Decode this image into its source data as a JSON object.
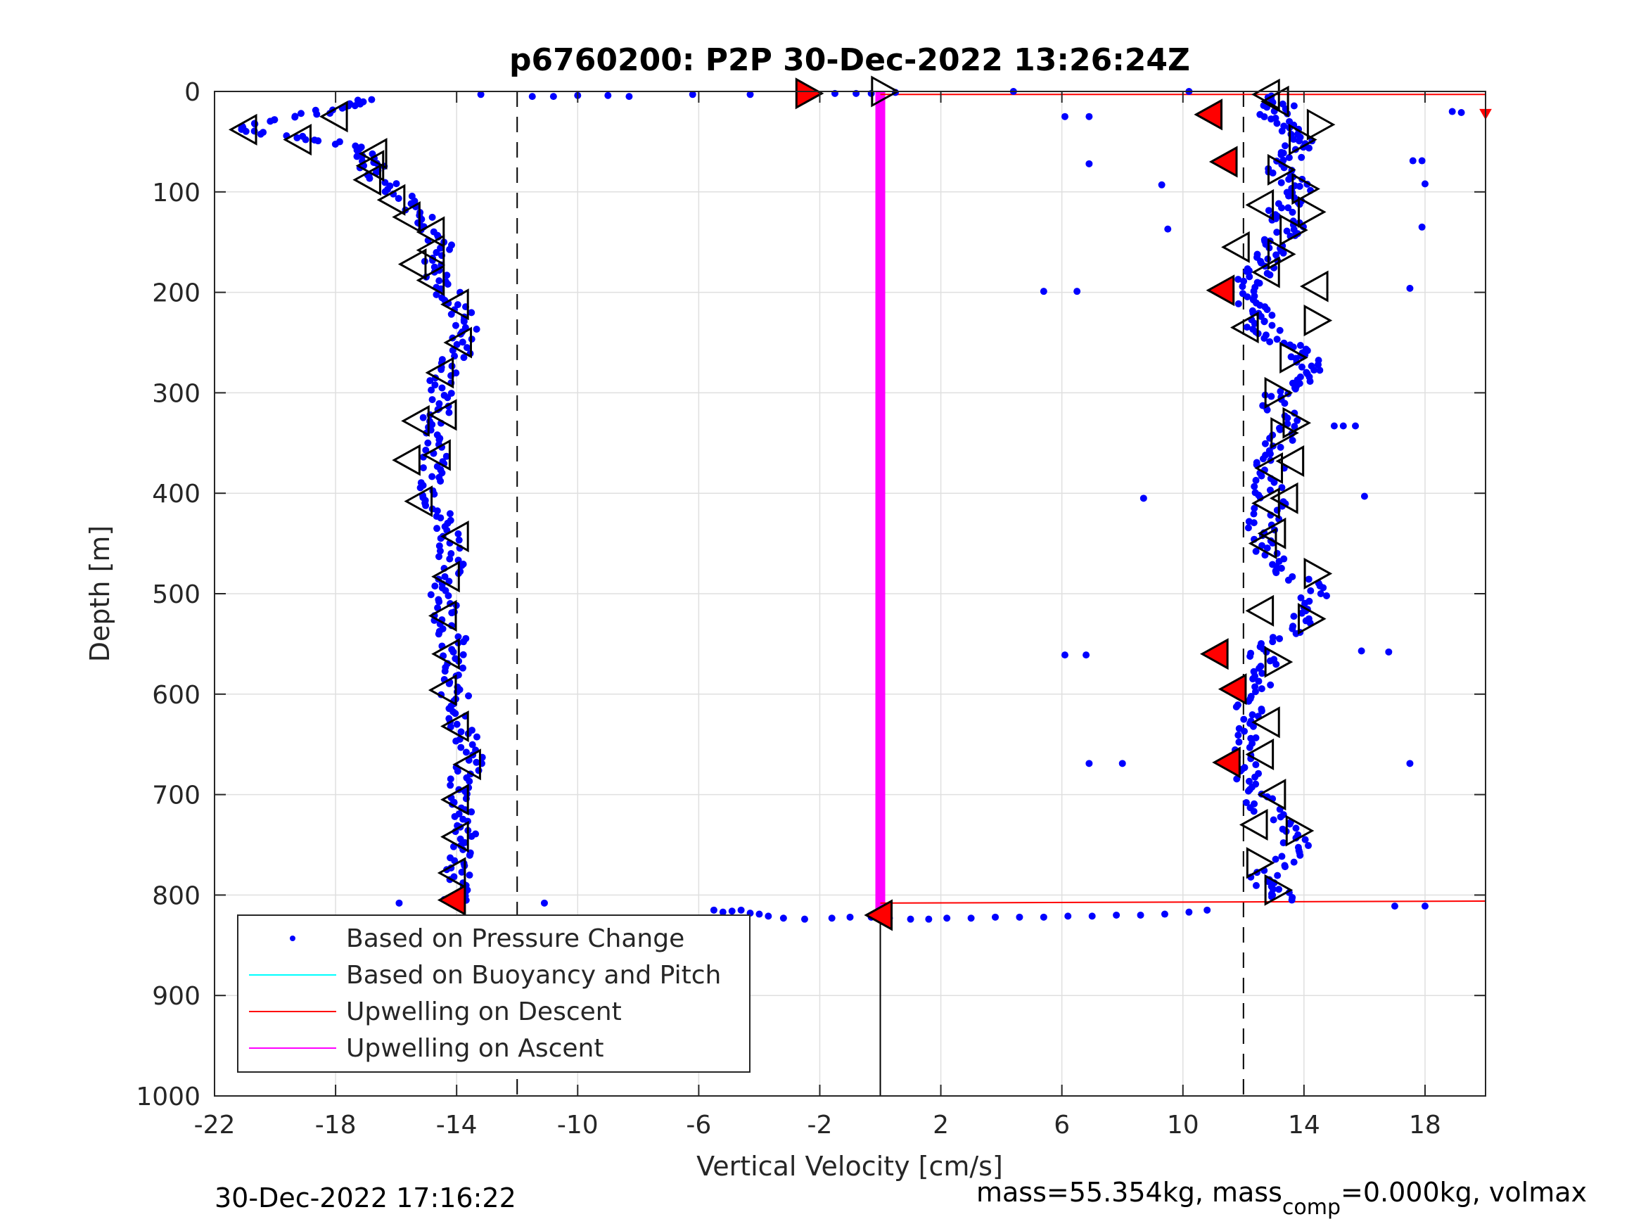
{
  "figure": {
    "title": "p6760200: P2P 30-Dec-2022 13:26:24Z",
    "footer_left": "30-Dec-2022 17:16:22",
    "footer_right_prefix": "mass=55.354kg, mass",
    "footer_right_sub": "comp",
    "footer_right_suffix": "=0.000kg, volmax"
  },
  "chart_data": {
    "type": "scatter",
    "xlabel": "Vertical Velocity [cm/s]",
    "ylabel": "Depth [m]",
    "xlim": [
      -22,
      20
    ],
    "ylim": [
      0,
      1000
    ],
    "y_reversed": true,
    "grid": true,
    "xticks": [
      -22,
      -18,
      -14,
      -10,
      -6,
      -2,
      2,
      6,
      10,
      14,
      18
    ],
    "xtick_labels": [
      "-22",
      "-18",
      "-14",
      "-10",
      "-6",
      "-2",
      "2",
      "6",
      "10",
      "14",
      "18"
    ],
    "yticks": [
      0,
      100,
      200,
      300,
      400,
      500,
      600,
      700,
      800,
      900,
      1000
    ],
    "ytick_labels": [
      "0",
      "100",
      "200",
      "300",
      "400",
      "500",
      "600",
      "700",
      "800",
      "900",
      "1000"
    ],
    "legend_position": "bottom-left",
    "legend": [
      {
        "label": "Based on Pressure Change",
        "color": "#0000ff",
        "marker": "dot"
      },
      {
        "label": "Based on Buoyancy and Pitch",
        "color": "#00ffff",
        "marker": "line"
      },
      {
        "label": "Upwelling on Descent",
        "color": "#ff0000",
        "marker": "line"
      },
      {
        "label": "Upwelling on Ascent",
        "color": "#ff00ff",
        "marker": "line"
      }
    ],
    "colors": {
      "pressure": "#0000ff",
      "descent_upwelling": "#ff0000",
      "ascent_upwelling": "#ff00ff",
      "reference_lines": "#000000"
    },
    "reference_lines": {
      "dashed_x": [
        -12,
        12
      ],
      "solid_x_segment": {
        "x": 0,
        "y_from": 820,
        "y_to": 1000
      }
    },
    "upwelling_on_descent": [
      {
        "x": [
          0,
          20
        ],
        "y": [
          3,
          3
        ]
      },
      {
        "x": [
          0,
          20
        ],
        "y": [
          808,
          806
        ]
      }
    ],
    "upwelling_on_ascent": {
      "x": [
        0,
        0
      ],
      "y": [
        0,
        820
      ]
    },
    "descent_profile": [
      {
        "depth": 8,
        "v": -16.8
      },
      {
        "depth": 15,
        "v": -17.5
      },
      {
        "depth": 22,
        "v": -18.8
      },
      {
        "depth": 30,
        "v": -20.2
      },
      {
        "depth": 38,
        "v": -21.2
      },
      {
        "depth": 45,
        "v": -19.5
      },
      {
        "depth": 52,
        "v": -17.8
      },
      {
        "depth": 60,
        "v": -17.0
      },
      {
        "depth": 70,
        "v": -16.7
      },
      {
        "depth": 80,
        "v": -16.8
      },
      {
        "depth": 95,
        "v": -16.2
      },
      {
        "depth": 110,
        "v": -15.5
      },
      {
        "depth": 125,
        "v": -15.0
      },
      {
        "depth": 140,
        "v": -14.7
      },
      {
        "depth": 155,
        "v": -14.5
      },
      {
        "depth": 170,
        "v": -15.0
      },
      {
        "depth": 185,
        "v": -14.6
      },
      {
        "depth": 200,
        "v": -14.3
      },
      {
        "depth": 215,
        "v": -14.0
      },
      {
        "depth": 230,
        "v": -13.6
      },
      {
        "depth": 245,
        "v": -13.8
      },
      {
        "depth": 260,
        "v": -13.9
      },
      {
        "depth": 275,
        "v": -14.3
      },
      {
        "depth": 290,
        "v": -14.6
      },
      {
        "depth": 305,
        "v": -14.4
      },
      {
        "depth": 320,
        "v": -14.6
      },
      {
        "depth": 335,
        "v": -14.9
      },
      {
        "depth": 350,
        "v": -14.5
      },
      {
        "depth": 365,
        "v": -14.8
      },
      {
        "depth": 380,
        "v": -14.6
      },
      {
        "depth": 395,
        "v": -14.8
      },
      {
        "depth": 410,
        "v": -14.7
      },
      {
        "depth": 425,
        "v": -14.5
      },
      {
        "depth": 440,
        "v": -14.2
      },
      {
        "depth": 455,
        "v": -14.1
      },
      {
        "depth": 470,
        "v": -14.2
      },
      {
        "depth": 485,
        "v": -14.3
      },
      {
        "depth": 500,
        "v": -14.4
      },
      {
        "depth": 515,
        "v": -14.3
      },
      {
        "depth": 530,
        "v": -14.3
      },
      {
        "depth": 545,
        "v": -14.1
      },
      {
        "depth": 560,
        "v": -14.2
      },
      {
        "depth": 575,
        "v": -14.2
      },
      {
        "depth": 590,
        "v": -14.3
      },
      {
        "depth": 605,
        "v": -14.0
      },
      {
        "depth": 620,
        "v": -13.9
      },
      {
        "depth": 635,
        "v": -13.8
      },
      {
        "depth": 650,
        "v": -13.6
      },
      {
        "depth": 665,
        "v": -13.5
      },
      {
        "depth": 680,
        "v": -13.8
      },
      {
        "depth": 695,
        "v": -13.9
      },
      {
        "depth": 710,
        "v": -13.8
      },
      {
        "depth": 725,
        "v": -13.7
      },
      {
        "depth": 740,
        "v": -13.8
      },
      {
        "depth": 755,
        "v": -13.8
      },
      {
        "depth": 770,
        "v": -13.9
      },
      {
        "depth": 785,
        "v": -13.9
      },
      {
        "depth": 800,
        "v": -14.0
      },
      {
        "depth": 808,
        "v": -14.1
      }
    ],
    "ascent_profile": [
      {
        "depth": 5,
        "v": 12.8
      },
      {
        "depth": 15,
        "v": 13.2
      },
      {
        "depth": 25,
        "v": 12.9
      },
      {
        "depth": 35,
        "v": 13.6
      },
      {
        "depth": 45,
        "v": 13.9
      },
      {
        "depth": 55,
        "v": 13.8
      },
      {
        "depth": 65,
        "v": 13.5
      },
      {
        "depth": 75,
        "v": 13.2
      },
      {
        "depth": 85,
        "v": 13.4
      },
      {
        "depth": 95,
        "v": 13.9
      },
      {
        "depth": 105,
        "v": 13.7
      },
      {
        "depth": 115,
        "v": 13.3
      },
      {
        "depth": 125,
        "v": 13.4
      },
      {
        "depth": 135,
        "v": 13.5
      },
      {
        "depth": 145,
        "v": 13.2
      },
      {
        "depth": 155,
        "v": 13.0
      },
      {
        "depth": 165,
        "v": 12.8
      },
      {
        "depth": 175,
        "v": 12.6
      },
      {
        "depth": 185,
        "v": 12.4
      },
      {
        "depth": 195,
        "v": 11.9
      },
      {
        "depth": 205,
        "v": 12.0
      },
      {
        "depth": 215,
        "v": 12.3
      },
      {
        "depth": 225,
        "v": 12.6
      },
      {
        "depth": 235,
        "v": 12.6
      },
      {
        "depth": 245,
        "v": 13.0
      },
      {
        "depth": 255,
        "v": 13.5
      },
      {
        "depth": 265,
        "v": 14.0
      },
      {
        "depth": 275,
        "v": 14.3
      },
      {
        "depth": 285,
        "v": 13.9
      },
      {
        "depth": 295,
        "v": 13.4
      },
      {
        "depth": 305,
        "v": 13.0
      },
      {
        "depth": 320,
        "v": 13.2
      },
      {
        "depth": 335,
        "v": 13.5
      },
      {
        "depth": 350,
        "v": 13.2
      },
      {
        "depth": 365,
        "v": 13.0
      },
      {
        "depth": 380,
        "v": 12.8
      },
      {
        "depth": 395,
        "v": 12.8
      },
      {
        "depth": 410,
        "v": 12.9
      },
      {
        "depth": 425,
        "v": 12.7
      },
      {
        "depth": 440,
        "v": 12.6
      },
      {
        "depth": 455,
        "v": 12.8
      },
      {
        "depth": 470,
        "v": 13.1
      },
      {
        "depth": 485,
        "v": 13.8
      },
      {
        "depth": 500,
        "v": 14.4
      },
      {
        "depth": 515,
        "v": 14.2
      },
      {
        "depth": 530,
        "v": 13.9
      },
      {
        "depth": 545,
        "v": 13.2
      },
      {
        "depth": 560,
        "v": 12.6
      },
      {
        "depth": 575,
        "v": 12.6
      },
      {
        "depth": 590,
        "v": 12.4
      },
      {
        "depth": 605,
        "v": 12.2
      },
      {
        "depth": 620,
        "v": 12.1
      },
      {
        "depth": 635,
        "v": 12.2
      },
      {
        "depth": 650,
        "v": 12.2
      },
      {
        "depth": 665,
        "v": 12.1
      },
      {
        "depth": 680,
        "v": 12.0
      },
      {
        "depth": 695,
        "v": 12.4
      },
      {
        "depth": 710,
        "v": 12.6
      },
      {
        "depth": 725,
        "v": 13.0
      },
      {
        "depth": 740,
        "v": 13.6
      },
      {
        "depth": 755,
        "v": 13.8
      },
      {
        "depth": 770,
        "v": 13.2
      },
      {
        "depth": 785,
        "v": 12.6
      },
      {
        "depth": 795,
        "v": 13.0
      },
      {
        "depth": 805,
        "v": 13.6
      }
    ],
    "surface_transition": {
      "x": [
        -13.2,
        -11.5,
        -10.8,
        -10.0,
        -9.0,
        -8.3,
        -6.2,
        -4.3,
        -2.5,
        -1.5,
        -0.8,
        -0.3,
        0.5
      ],
      "y": [
        3,
        5,
        5,
        4,
        4,
        5,
        3,
        3,
        2,
        2,
        2,
        2,
        1
      ]
    },
    "bottom_transition": {
      "x": [
        -5.5,
        -5.2,
        -4.9,
        -4.6,
        -4.3,
        -4.0,
        -3.7,
        -3.2,
        -2.5,
        -1.6,
        -1.0,
        -0.3,
        0.3,
        1.0,
        1.6,
        2.2,
        3.0,
        3.8,
        4.6,
        5.4,
        6.2,
        7.0,
        7.8,
        8.6,
        9.4,
        10.2,
        10.8
      ],
      "y": [
        815,
        817,
        816,
        815,
        818,
        819,
        821,
        823,
        824,
        823,
        822,
        822,
        823,
        824,
        824,
        823,
        823,
        822,
        822,
        822,
        821,
        821,
        820,
        820,
        819,
        817,
        815
      ]
    },
    "outliers": {
      "x": [
        4.4,
        10.2,
        6.1,
        6.9,
        6.9,
        9.3,
        9.5,
        5.4,
        6.5,
        8.7,
        6.1,
        6.8,
        6.9,
        8.0,
        15.0,
        15.3,
        15.7,
        16.0,
        15.9,
        16.8,
        17.5,
        17.5,
        17.6,
        17.9,
        18.0,
        17.9,
        18.9,
        19.2,
        17.0,
        18.0,
        -15.9,
        -11.1
      ],
      "y": [
        0,
        0,
        25,
        25,
        72,
        93,
        137,
        199,
        199,
        405,
        561,
        561,
        669,
        669,
        333,
        333,
        333,
        403,
        557,
        558,
        196,
        669,
        69,
        69,
        92,
        135,
        20,
        21,
        811,
        811,
        808,
        808
      ]
    },
    "markers": [
      {
        "depth": 38,
        "v": -21.0,
        "dir": "left",
        "fill": "none"
      },
      {
        "depth": 25,
        "v": -18.0,
        "dir": "left",
        "fill": "none"
      },
      {
        "depth": 48,
        "v": -19.2,
        "dir": "left",
        "fill": "none"
      },
      {
        "depth": 62,
        "v": -16.7,
        "dir": "left",
        "fill": "none"
      },
      {
        "depth": 74,
        "v": -16.8,
        "dir": "left",
        "fill": "none"
      },
      {
        "depth": 88,
        "v": -16.9,
        "dir": "left",
        "fill": "none"
      },
      {
        "depth": 108,
        "v": -16.1,
        "dir": "left",
        "fill": "none"
      },
      {
        "depth": 125,
        "v": -15.6,
        "dir": "left",
        "fill": "none"
      },
      {
        "depth": 140,
        "v": -14.8,
        "dir": "left",
        "fill": "none"
      },
      {
        "depth": 158,
        "v": -14.8,
        "dir": "left",
        "fill": "none"
      },
      {
        "depth": 172,
        "v": -15.4,
        "dir": "left",
        "fill": "none"
      },
      {
        "depth": 188,
        "v": -14.8,
        "dir": "left",
        "fill": "none"
      },
      {
        "depth": 212,
        "v": -14.0,
        "dir": "left",
        "fill": "none"
      },
      {
        "depth": 250,
        "v": -13.9,
        "dir": "left",
        "fill": "none"
      },
      {
        "depth": 280,
        "v": -14.5,
        "dir": "left",
        "fill": "none"
      },
      {
        "depth": 328,
        "v": -15.3,
        "dir": "left",
        "fill": "none"
      },
      {
        "depth": 322,
        "v": -14.4,
        "dir": "left",
        "fill": "none"
      },
      {
        "depth": 367,
        "v": -15.6,
        "dir": "left",
        "fill": "none"
      },
      {
        "depth": 362,
        "v": -14.6,
        "dir": "left",
        "fill": "none"
      },
      {
        "depth": 408,
        "v": -15.2,
        "dir": "left",
        "fill": "none"
      },
      {
        "depth": 443,
        "v": -14.0,
        "dir": "left",
        "fill": "none"
      },
      {
        "depth": 483,
        "v": -14.3,
        "dir": "left",
        "fill": "none"
      },
      {
        "depth": 522,
        "v": -14.4,
        "dir": "left",
        "fill": "none"
      },
      {
        "depth": 560,
        "v": -14.3,
        "dir": "left",
        "fill": "none"
      },
      {
        "depth": 596,
        "v": -14.4,
        "dir": "left",
        "fill": "none"
      },
      {
        "depth": 632,
        "v": -14.0,
        "dir": "left",
        "fill": "none"
      },
      {
        "depth": 670,
        "v": -13.6,
        "dir": "left",
        "fill": "none"
      },
      {
        "depth": 705,
        "v": -14.0,
        "dir": "left",
        "fill": "none"
      },
      {
        "depth": 742,
        "v": -14.0,
        "dir": "left",
        "fill": "none"
      },
      {
        "depth": 778,
        "v": -14.1,
        "dir": "left",
        "fill": "none"
      },
      {
        "depth": 805,
        "v": -14.1,
        "dir": "left",
        "fill": "red"
      },
      {
        "depth": 2,
        "v": -2.4,
        "dir": "right",
        "fill": "red"
      },
      {
        "depth": 0,
        "v": 0.1,
        "dir": "right",
        "fill": "none"
      },
      {
        "depth": 820,
        "v": 0.0,
        "dir": "left",
        "fill": "red"
      },
      {
        "depth": 3,
        "v": 12.8,
        "dir": "left",
        "fill": "none"
      },
      {
        "depth": 10,
        "v": 13.1,
        "dir": "left",
        "fill": "none"
      },
      {
        "depth": 23,
        "v": 10.9,
        "dir": "left",
        "fill": "red"
      },
      {
        "depth": 33,
        "v": 14.5,
        "dir": "right",
        "fill": "none"
      },
      {
        "depth": 48,
        "v": 13.9,
        "dir": "right",
        "fill": "none"
      },
      {
        "depth": 70,
        "v": 11.4,
        "dir": "left",
        "fill": "red"
      },
      {
        "depth": 78,
        "v": 13.2,
        "dir": "right",
        "fill": "none"
      },
      {
        "depth": 97,
        "v": 14.0,
        "dir": "right",
        "fill": "none"
      },
      {
        "depth": 113,
        "v": 12.6,
        "dir": "left",
        "fill": "none"
      },
      {
        "depth": 120,
        "v": 14.2,
        "dir": "right",
        "fill": "none"
      },
      {
        "depth": 138,
        "v": 13.6,
        "dir": "right",
        "fill": "none"
      },
      {
        "depth": 155,
        "v": 11.8,
        "dir": "left",
        "fill": "none"
      },
      {
        "depth": 162,
        "v": 13.2,
        "dir": "right",
        "fill": "none"
      },
      {
        "depth": 180,
        "v": 12.8,
        "dir": "left",
        "fill": "none"
      },
      {
        "depth": 194,
        "v": 14.4,
        "dir": "left",
        "fill": "none"
      },
      {
        "depth": 198,
        "v": 11.3,
        "dir": "left",
        "fill": "red"
      },
      {
        "depth": 228,
        "v": 14.4,
        "dir": "right",
        "fill": "none"
      },
      {
        "depth": 235,
        "v": 12.1,
        "dir": "left",
        "fill": "none"
      },
      {
        "depth": 265,
        "v": 13.6,
        "dir": "right",
        "fill": "none"
      },
      {
        "depth": 300,
        "v": 13.1,
        "dir": "right",
        "fill": "none"
      },
      {
        "depth": 330,
        "v": 13.7,
        "dir": "right",
        "fill": "none"
      },
      {
        "depth": 340,
        "v": 13.3,
        "dir": "right",
        "fill": "none"
      },
      {
        "depth": 368,
        "v": 13.6,
        "dir": "left",
        "fill": "none"
      },
      {
        "depth": 375,
        "v": 12.9,
        "dir": "left",
        "fill": "none"
      },
      {
        "depth": 405,
        "v": 13.4,
        "dir": "left",
        "fill": "none"
      },
      {
        "depth": 410,
        "v": 12.8,
        "dir": "left",
        "fill": "none"
      },
      {
        "depth": 440,
        "v": 13.0,
        "dir": "left",
        "fill": "none"
      },
      {
        "depth": 450,
        "v": 12.7,
        "dir": "left",
        "fill": "none"
      },
      {
        "depth": 480,
        "v": 14.4,
        "dir": "right",
        "fill": "none"
      },
      {
        "depth": 517,
        "v": 12.6,
        "dir": "left",
        "fill": "none"
      },
      {
        "depth": 525,
        "v": 14.2,
        "dir": "right",
        "fill": "none"
      },
      {
        "depth": 560,
        "v": 11.1,
        "dir": "left",
        "fill": "red"
      },
      {
        "depth": 568,
        "v": 13.1,
        "dir": "right",
        "fill": "none"
      },
      {
        "depth": 595,
        "v": 11.7,
        "dir": "left",
        "fill": "red"
      },
      {
        "depth": 628,
        "v": 12.8,
        "dir": "left",
        "fill": "none"
      },
      {
        "depth": 660,
        "v": 12.6,
        "dir": "left",
        "fill": "none"
      },
      {
        "depth": 668,
        "v": 11.5,
        "dir": "left",
        "fill": "red"
      },
      {
        "depth": 700,
        "v": 13.0,
        "dir": "left",
        "fill": "none"
      },
      {
        "depth": 730,
        "v": 12.4,
        "dir": "left",
        "fill": "none"
      },
      {
        "depth": 736,
        "v": 13.8,
        "dir": "right",
        "fill": "none"
      },
      {
        "depth": 768,
        "v": 12.5,
        "dir": "right",
        "fill": "none"
      },
      {
        "depth": 795,
        "v": 13.1,
        "dir": "right",
        "fill": "none"
      },
      {
        "depth": 22,
        "v": 20.0,
        "dir": "down",
        "fill": "red"
      }
    ]
  }
}
